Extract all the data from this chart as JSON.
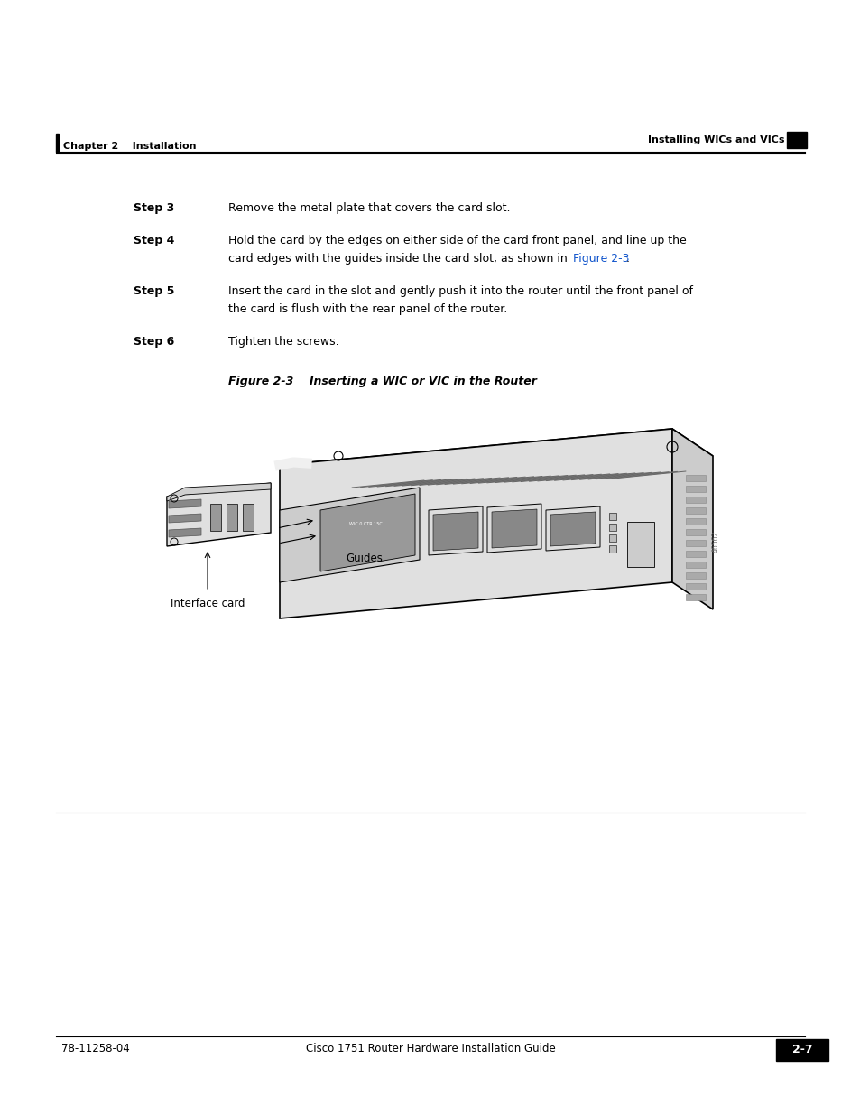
{
  "bg_color": "#ffffff",
  "top_header_left": "Chapter 2    Installation",
  "top_header_right": "Installing WICs and VICs",
  "step3_label": "Step 3",
  "step3_text": "Remove the metal plate that covers the card slot.",
  "step4_label": "Step 4",
  "step4_line1": "Hold the card by the edges on either side of the card front panel, and line up the",
  "step4_line2_normal": "card edges with the guides inside the card slot, as shown in ",
  "step4_link": "Figure 2-3",
  "step4_end": ".",
  "step5_label": "Step 5",
  "step5_line1": "Insert the card in the slot and gently push it into the router until the front panel of",
  "step5_line2": "the card is flush with the rear panel of the router.",
  "step6_label": "Step 6",
  "step6_text": "Tighten the screws.",
  "figure_caption": "Figure 2-3    Inserting a WIC or VIC in the Router",
  "label_guides": "Guides",
  "label_interface_card": "Interface card",
  "footer_left": "78-11258-04",
  "footer_center": "Cisco 1751 Router Hardware Installation Guide",
  "footer_right": "2-7",
  "link_color": "#1155cc",
  "text_color": "#000000"
}
